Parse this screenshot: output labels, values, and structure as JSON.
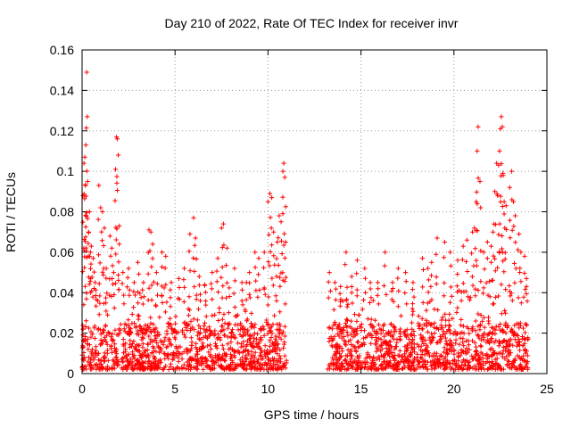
{
  "chart_data": {
    "type": "scatter",
    "title": "Day 210 of 2022, Rate Of TEC Index for receiver invr",
    "xlabel": "GPS time / hours",
    "ylabel": "ROTI / TECUs",
    "xlim": [
      0,
      25
    ],
    "ylim": [
      0,
      0.16
    ],
    "xticks": [
      0,
      5,
      10,
      15,
      20,
      25
    ],
    "xtick_labels": [
      "0",
      "5",
      "10",
      "15",
      "20",
      "25"
    ],
    "yticks": [
      0,
      0.02,
      0.04,
      0.06,
      0.08,
      0.1,
      0.12,
      0.14,
      0.16
    ],
    "ytick_labels": [
      "0",
      "0.02",
      "0.04",
      "0.06",
      "0.08",
      "0.1",
      "0.12",
      "0.14",
      "0.16"
    ],
    "grid": true,
    "marker": "+",
    "color": "#ff0000",
    "series": [
      {
        "name": "ROTI",
        "points": [
          [
            0.05,
            0.088
          ],
          [
            0.1,
            0.104
          ],
          [
            0.15,
            0.107
          ],
          [
            0.18,
            0.093
          ],
          [
            0.2,
            0.113
          ],
          [
            0.22,
            0.078
          ],
          [
            0.25,
            0.149
          ],
          [
            0.28,
            0.127
          ],
          [
            0.3,
            0.095
          ],
          [
            0.35,
            0.07
          ],
          [
            0.4,
            0.08
          ],
          [
            0.45,
            0.06
          ],
          [
            0.5,
            0.063
          ],
          [
            0.6,
            0.057
          ],
          [
            0.7,
            0.045
          ],
          [
            0.9,
            0.093
          ],
          [
            1.0,
            0.082
          ],
          [
            1.1,
            0.08
          ],
          [
            1.2,
            0.072
          ],
          [
            1.3,
            0.052
          ],
          [
            1.5,
            0.068
          ],
          [
            1.6,
            0.062
          ],
          [
            1.7,
            0.05
          ],
          [
            1.8,
            0.101
          ],
          [
            1.85,
            0.117
          ],
          [
            1.9,
            0.116
          ],
          [
            1.95,
            0.108
          ],
          [
            2.0,
            0.064
          ],
          [
            2.2,
            0.05
          ],
          [
            2.5,
            0.052
          ],
          [
            2.8,
            0.045
          ],
          [
            3.0,
            0.055
          ],
          [
            3.3,
            0.045
          ],
          [
            3.6,
            0.071
          ],
          [
            3.7,
            0.07
          ],
          [
            3.8,
            0.064
          ],
          [
            4.0,
            0.05
          ],
          [
            4.3,
            0.06
          ],
          [
            4.5,
            0.058
          ],
          [
            4.8,
            0.045
          ],
          [
            5.2,
            0.047
          ],
          [
            5.5,
            0.052
          ],
          [
            5.8,
            0.069
          ],
          [
            6.0,
            0.077
          ],
          [
            6.1,
            0.067
          ],
          [
            6.3,
            0.048
          ],
          [
            6.6,
            0.044
          ],
          [
            7.0,
            0.05
          ],
          [
            7.3,
            0.057
          ],
          [
            7.5,
            0.072
          ],
          [
            7.6,
            0.074
          ],
          [
            7.8,
            0.062
          ],
          [
            8.2,
            0.052
          ],
          [
            8.6,
            0.045
          ],
          [
            9.0,
            0.05
          ],
          [
            9.3,
            0.06
          ],
          [
            9.5,
            0.057
          ],
          [
            9.8,
            0.06
          ],
          [
            10.0,
            0.085
          ],
          [
            10.1,
            0.089
          ],
          [
            10.2,
            0.087
          ],
          [
            10.3,
            0.07
          ],
          [
            10.5,
            0.065
          ],
          [
            10.6,
            0.078
          ],
          [
            10.7,
            0.075
          ],
          [
            10.8,
            0.1
          ],
          [
            10.85,
            0.104
          ],
          [
            10.9,
            0.097
          ],
          [
            10.95,
            0.065
          ],
          [
            13.3,
            0.05
          ],
          [
            13.6,
            0.045
          ],
          [
            13.9,
            0.043
          ],
          [
            14.2,
            0.06
          ],
          [
            14.5,
            0.048
          ],
          [
            14.8,
            0.056
          ],
          [
            15.2,
            0.052
          ],
          [
            15.5,
            0.045
          ],
          [
            15.9,
            0.045
          ],
          [
            16.3,
            0.06
          ],
          [
            16.7,
            0.045
          ],
          [
            17.0,
            0.052
          ],
          [
            17.4,
            0.05
          ],
          [
            17.8,
            0.045
          ],
          [
            18.3,
            0.057
          ],
          [
            18.6,
            0.052
          ],
          [
            18.8,
            0.055
          ],
          [
            19.1,
            0.067
          ],
          [
            19.5,
            0.065
          ],
          [
            19.8,
            0.06
          ],
          [
            20.2,
            0.056
          ],
          [
            20.5,
            0.063
          ],
          [
            20.7,
            0.066
          ],
          [
            21.0,
            0.07
          ],
          [
            21.1,
            0.072
          ],
          [
            21.2,
            0.085
          ],
          [
            21.25,
            0.11
          ],
          [
            21.3,
            0.122
          ],
          [
            21.4,
            0.095
          ],
          [
            21.6,
            0.06
          ],
          [
            21.8,
            0.065
          ],
          [
            22.0,
            0.063
          ],
          [
            22.1,
            0.07
          ],
          [
            22.2,
            0.09
          ],
          [
            22.3,
            0.104
          ],
          [
            22.4,
            0.103
          ],
          [
            22.45,
            0.11
          ],
          [
            22.5,
            0.121
          ],
          [
            22.55,
            0.127
          ],
          [
            22.6,
            0.122
          ],
          [
            22.65,
            0.098
          ],
          [
            22.7,
            0.085
          ],
          [
            22.8,
            0.083
          ],
          [
            23.0,
            0.092
          ],
          [
            23.1,
            0.1
          ],
          [
            23.2,
            0.085
          ],
          [
            23.3,
            0.078
          ],
          [
            23.5,
            0.069
          ],
          [
            23.6,
            0.06
          ],
          [
            23.8,
            0.058
          ],
          [
            23.9,
            0.047
          ]
        ]
      }
    ],
    "data_ranges": [
      {
        "x": [
          0,
          11
        ],
        "y_low": 0.002,
        "y_typical_high": 0.025
      },
      {
        "x": [
          13.2,
          24
        ],
        "y_low": 0.002,
        "y_typical_high": 0.025
      }
    ],
    "data_gap": [
      11,
      13.2
    ]
  }
}
